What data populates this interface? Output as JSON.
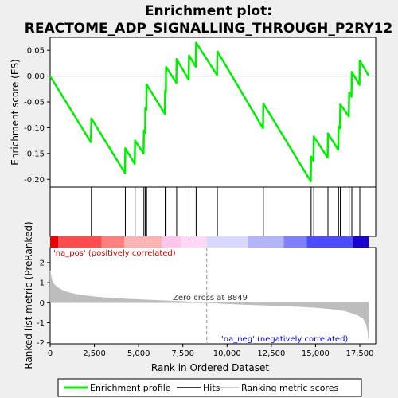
{
  "chart_data": {
    "type": "line",
    "title_line1": "Enrichment plot:",
    "title_line2": "REACTOME_ADP_SIGNALLING_THROUGH_P2RY12",
    "es_ylabel": "Enrichment score (ES)",
    "metric_ylabel": "Ranked list metric (PreRanked)",
    "xlabel": "Rank in Ordered Dataset",
    "x_range": [
      0,
      18400
    ],
    "es_ylim": [
      -0.215,
      0.075
    ],
    "metric_ylim": [
      -2.05,
      2.75
    ],
    "x_ticks": [
      0,
      2500,
      5000,
      7500,
      10000,
      12500,
      15000,
      17500
    ],
    "x_tick_labels": [
      "0",
      "2,500",
      "5,000",
      "7,500",
      "10,000",
      "12,500",
      "15,000",
      "17,500"
    ],
    "es_ticks": [
      0.05,
      0.0,
      -0.05,
      -0.1,
      -0.15,
      -0.2
    ],
    "es_tick_labels": [
      "0.05",
      "0.00",
      "-0.05",
      "-0.10",
      "-0.15",
      "-0.20"
    ],
    "metric_ticks": [
      2,
      1,
      0,
      -1,
      -2
    ],
    "metric_tick_labels": [
      "2",
      "1",
      "0",
      "-1",
      "-2"
    ],
    "hits": [
      2330,
      4250,
      4800,
      5300,
      5380,
      5450,
      6500,
      6550,
      7150,
      7850,
      8250,
      9450,
      12050,
      14750,
      14900,
      15700,
      16300,
      16400,
      16900,
      17050,
      17500
    ],
    "es_curve": [
      [
        0,
        0.0
      ],
      [
        2300,
        -0.128
      ],
      [
        2330,
        -0.082
      ],
      [
        4230,
        -0.188
      ],
      [
        4250,
        -0.14
      ],
      [
        4780,
        -0.17
      ],
      [
        4800,
        -0.125
      ],
      [
        5280,
        -0.15
      ],
      [
        5300,
        -0.105
      ],
      [
        5370,
        -0.11
      ],
      [
        5380,
        -0.062
      ],
      [
        5440,
        -0.066
      ],
      [
        5450,
        -0.016
      ],
      [
        6480,
        -0.073
      ],
      [
        6500,
        -0.028
      ],
      [
        6540,
        -0.032
      ],
      [
        6550,
        0.018
      ],
      [
        7130,
        -0.013
      ],
      [
        7150,
        0.033
      ],
      [
        7830,
        -0.007
      ],
      [
        7850,
        0.04
      ],
      [
        8230,
        0.018
      ],
      [
        8250,
        0.065
      ],
      [
        9430,
        0.002
      ],
      [
        9450,
        0.048
      ],
      [
        12030,
        -0.101
      ],
      [
        12050,
        -0.053
      ],
      [
        14730,
        -0.204
      ],
      [
        14750,
        -0.156
      ],
      [
        14880,
        -0.164
      ],
      [
        14900,
        -0.117
      ],
      [
        15680,
        -0.158
      ],
      [
        15700,
        -0.111
      ],
      [
        16280,
        -0.143
      ],
      [
        16300,
        -0.098
      ],
      [
        16380,
        -0.101
      ],
      [
        16400,
        -0.055
      ],
      [
        16880,
        -0.078
      ],
      [
        16900,
        -0.032
      ],
      [
        17030,
        -0.04
      ],
      [
        17050,
        0.008
      ],
      [
        17480,
        -0.017
      ],
      [
        17500,
        0.03
      ],
      [
        18000,
        0.001
      ]
    ],
    "metric_curve": [
      [
        0,
        1.6
      ],
      [
        80,
        1.2
      ],
      [
        200,
        0.95
      ],
      [
        400,
        0.78
      ],
      [
        700,
        0.62
      ],
      [
        1000,
        0.52
      ],
      [
        1500,
        0.42
      ],
      [
        2000,
        0.35
      ],
      [
        2500,
        0.3
      ],
      [
        3000,
        0.26
      ],
      [
        4000,
        0.2
      ],
      [
        5000,
        0.16
      ],
      [
        6000,
        0.12
      ],
      [
        7000,
        0.08
      ],
      [
        8000,
        0.04
      ],
      [
        8849,
        0.0
      ],
      [
        10000,
        -0.05
      ],
      [
        11000,
        -0.09
      ],
      [
        12000,
        -0.12
      ],
      [
        13000,
        -0.15
      ],
      [
        14000,
        -0.19
      ],
      [
        15000,
        -0.24
      ],
      [
        16000,
        -0.32
      ],
      [
        16600,
        -0.4
      ],
      [
        17000,
        -0.5
      ],
      [
        17400,
        -0.63
      ],
      [
        17700,
        -0.8
      ],
      [
        17880,
        -1.1
      ],
      [
        17950,
        -1.45
      ],
      [
        18000,
        -1.85
      ]
    ],
    "ranked_bar_colors": [
      "#ef0000",
      "#ff4d4d",
      "#ff7f7f",
      "#ffb3b3",
      "#ffc6ee",
      "#ffd9f5",
      "#d9d9ff",
      "#b3b3ff",
      "#7f7fff",
      "#4d4dff",
      "#1a00cc"
    ],
    "ranked_bar_breaks": [
      0,
      450,
      2900,
      4200,
      6300,
      7400,
      8850,
      11200,
      13200,
      14500,
      17100,
      18000
    ],
    "zero_cross_rank": 8849,
    "zero_cross_label": "Zero cross at 8849",
    "pos_label": "'na_pos' (positively correlated)",
    "neg_label": "'na_neg' (negatively correlated)",
    "legend": {
      "items": [
        {
          "label": "Enrichment profile",
          "color": "#00ee00"
        },
        {
          "label": "Hits",
          "color": "#000000"
        },
        {
          "label": "Ranking metric scores",
          "color": "#bdbdbd"
        }
      ]
    },
    "colors": {
      "es_line": "#00ee00",
      "metric_fill": "#bdbdbd",
      "pos_text": "#cc0000",
      "neg_text": "#0000cc"
    }
  }
}
